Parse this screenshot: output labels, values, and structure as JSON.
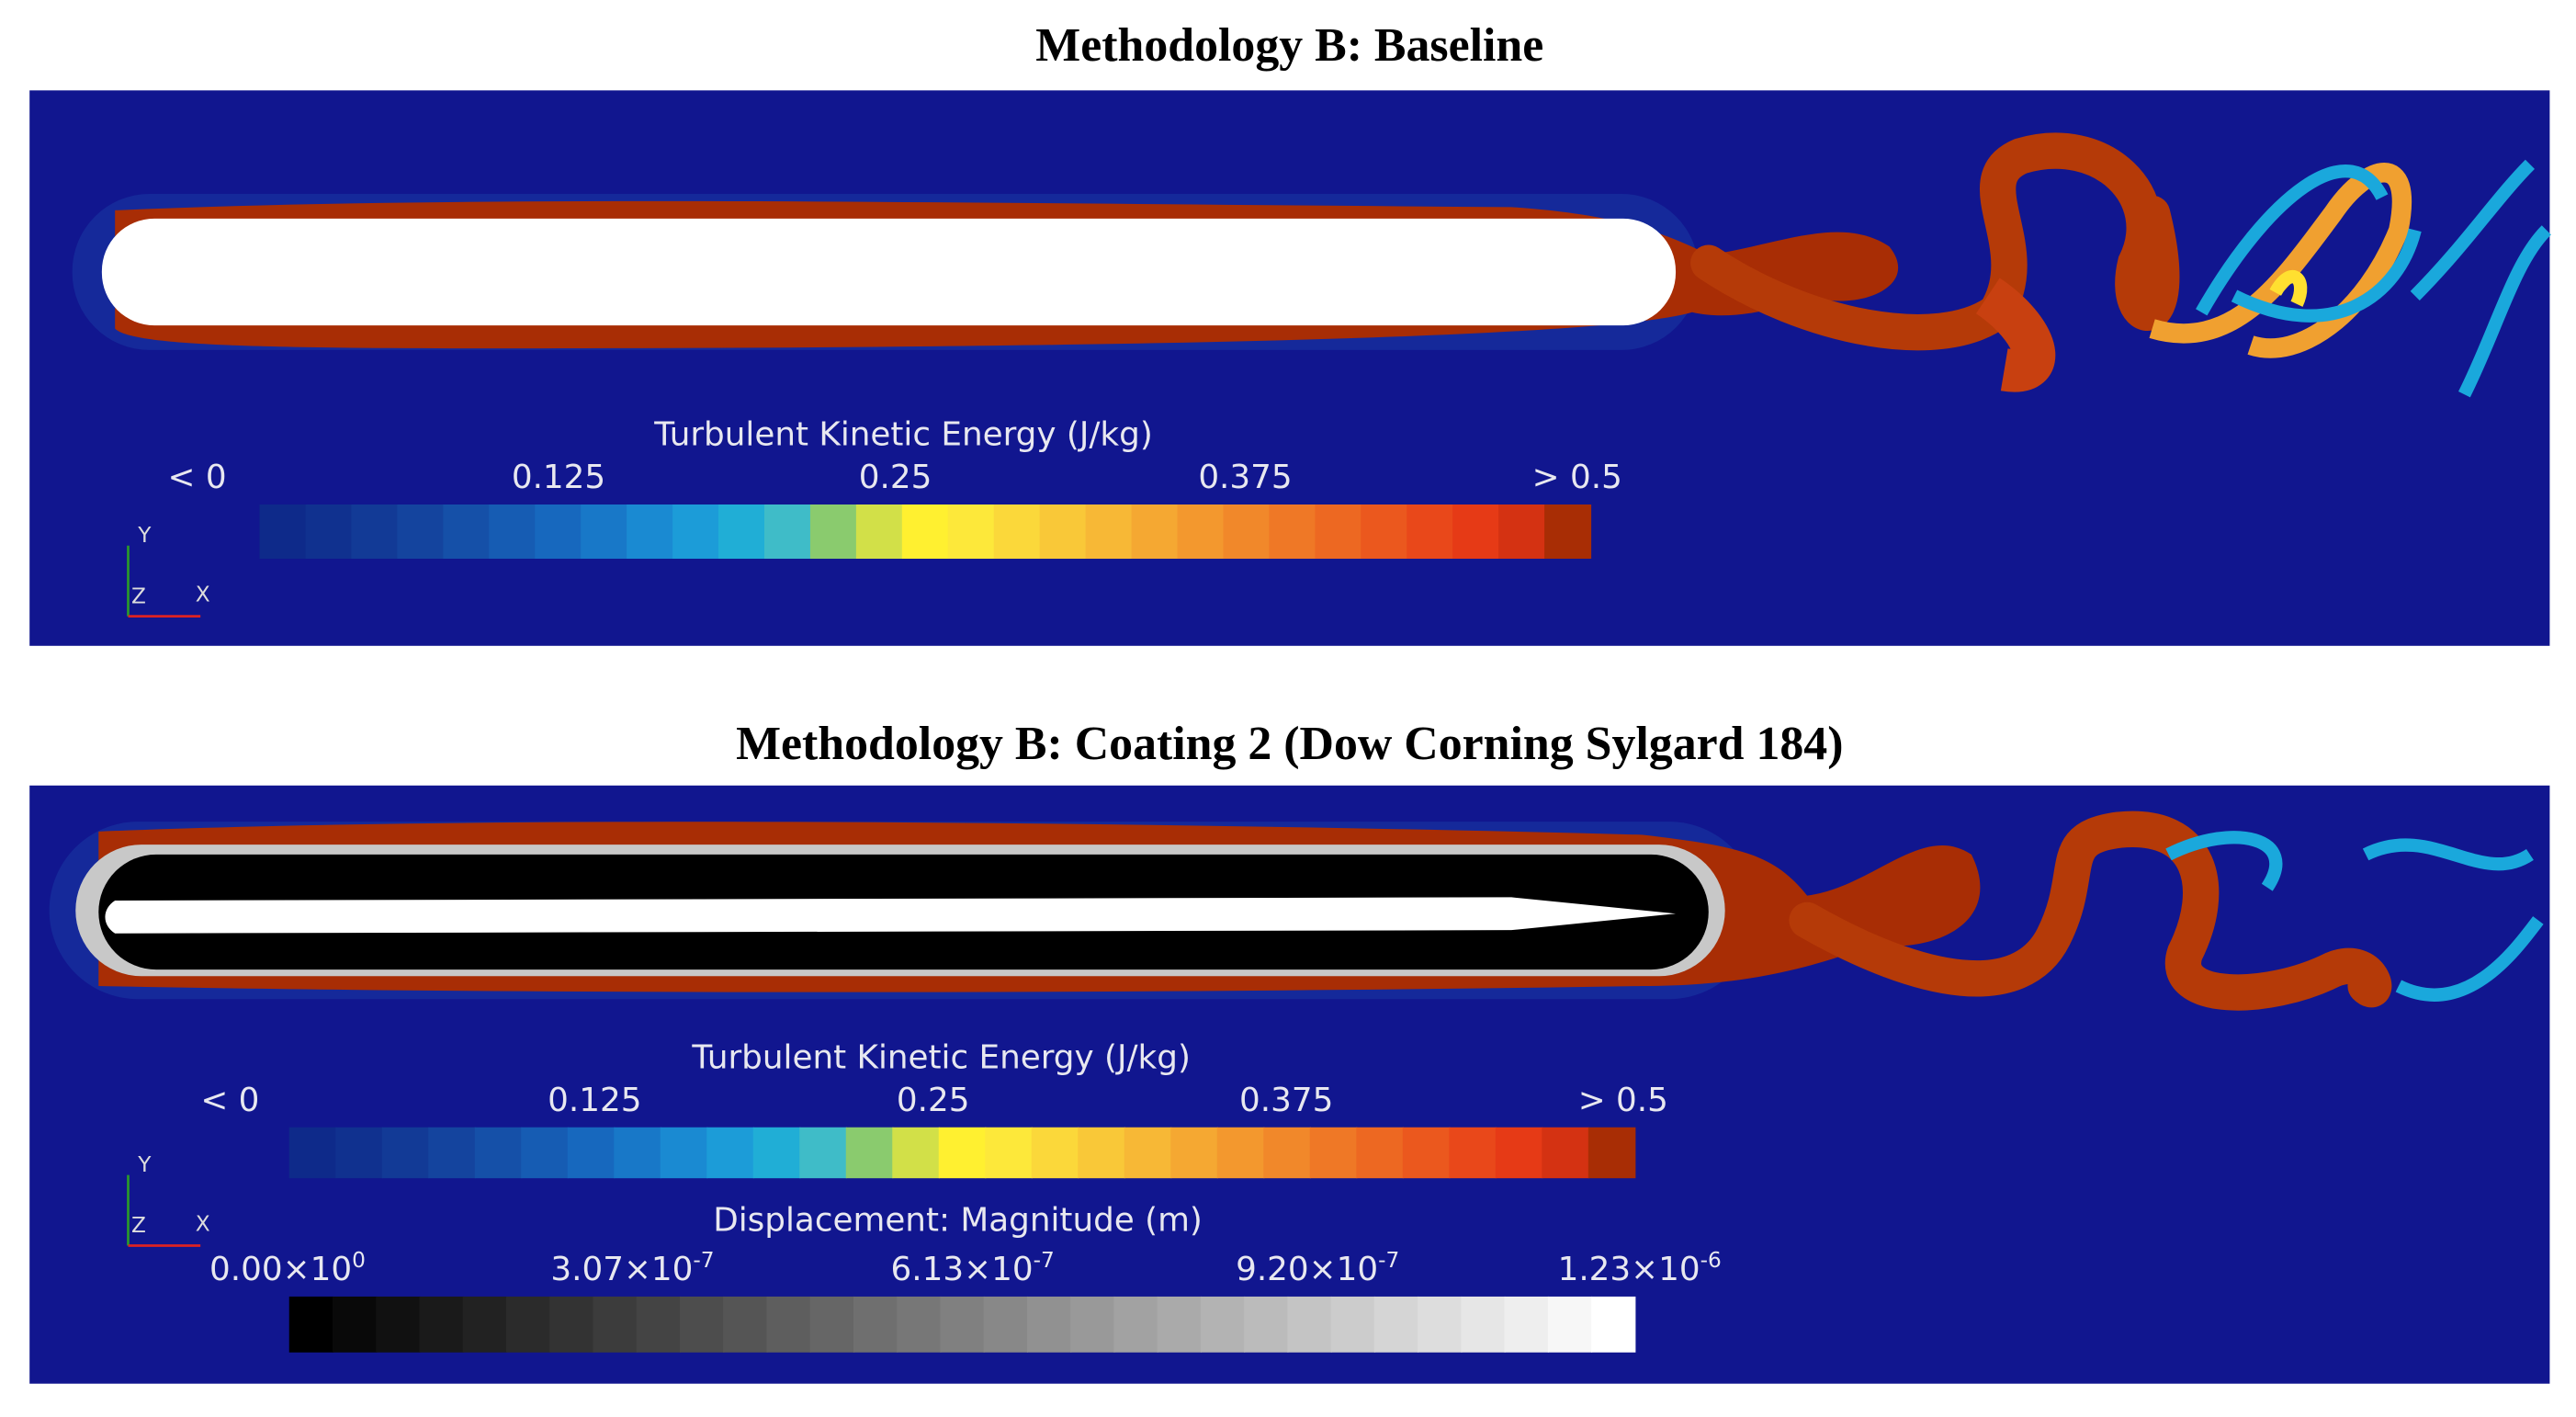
{
  "panels": [
    {
      "title": "Methodology B: Baseline",
      "colorbars": [
        {
          "title": "Turbulent Kinetic Energy (J/kg)",
          "ticks": [
            "< 0",
            "0.125",
            "0.25",
            "0.375",
            "> 0.5"
          ]
        }
      ],
      "axes": [
        "Y",
        "Z",
        "X"
      ]
    },
    {
      "title": "Methodology B: Coating 2 (Dow Corning Sylgard 184)",
      "colorbars": [
        {
          "title": "Turbulent Kinetic Energy (J/kg)",
          "ticks": [
            "< 0",
            "0.125",
            "0.25",
            "0.375",
            "> 0.5"
          ]
        },
        {
          "title": "Displacement: Magnitude (m)",
          "ticks": [
            {
              "base": "0.00×10",
              "exponent": "0"
            },
            {
              "base": "3.07×10",
              "exponent": "-7"
            },
            {
              "base": "6.13×10",
              "exponent": "-7"
            },
            {
              "base": "9.20×10",
              "exponent": "-7"
            },
            {
              "base": "1.23×10",
              "exponent": "-6"
            }
          ]
        }
      ],
      "axes": [
        "Y",
        "Z",
        "X"
      ]
    }
  ]
}
